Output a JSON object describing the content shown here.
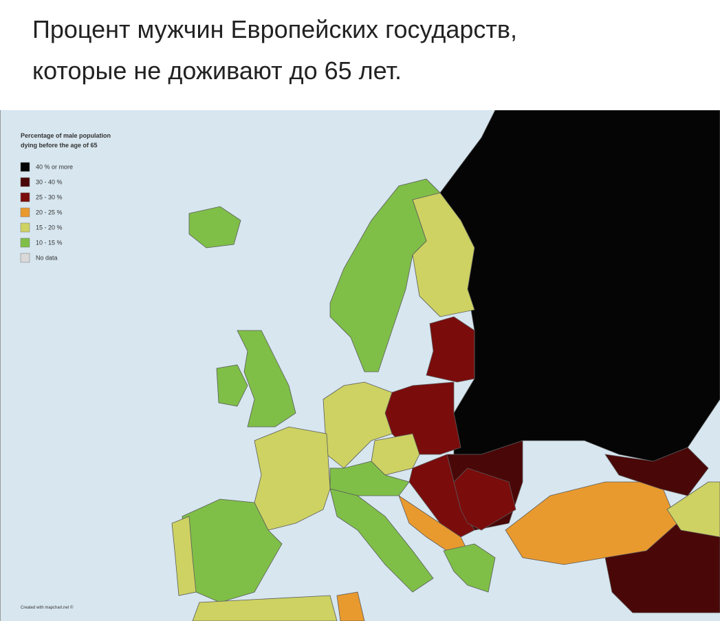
{
  "header": {
    "title_line1": "Процент мужчин Европейских государств,",
    "title_line2": "которые не доживают до 65 лет."
  },
  "legend": {
    "title_line1": "Percentage of male population",
    "title_line2": "dying before the age of 65",
    "items": [
      {
        "label": "40 % or more",
        "color": "#050505"
      },
      {
        "label": "30 - 40 %",
        "color": "#4a0707"
      },
      {
        "label": "25 - 30 %",
        "color": "#7b0c0c"
      },
      {
        "label": "20 - 25 %",
        "color": "#e99a2e"
      },
      {
        "label": "15 - 20 %",
        "color": "#cdd262"
      },
      {
        "label": "10 - 15 %",
        "color": "#7fbf48"
      },
      {
        "label": "No data",
        "color": "#d9d9d9"
      }
    ]
  },
  "credit": "Created with mapchart.net ©"
}
